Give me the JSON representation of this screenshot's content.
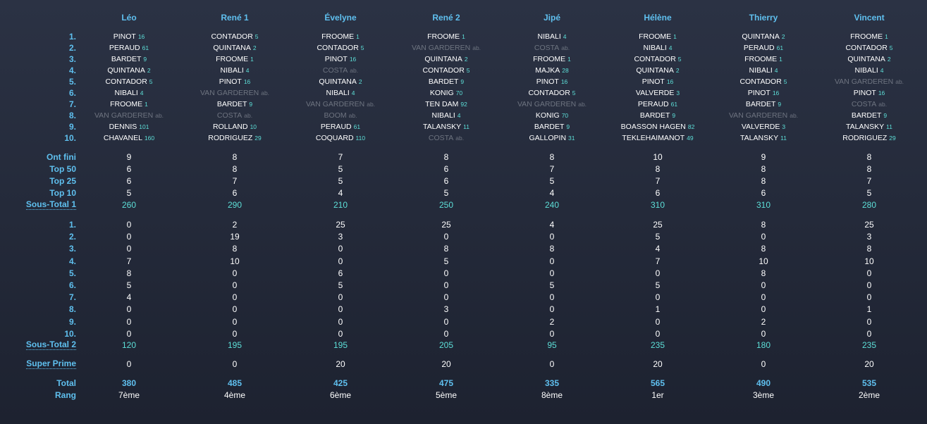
{
  "players": [
    {
      "name": "Léo",
      "picks": [
        {
          "rider": "PINOT",
          "num": "16"
        },
        {
          "rider": "PERAUD",
          "num": "61"
        },
        {
          "rider": "BARDET",
          "num": "9"
        },
        {
          "rider": "QUINTANA",
          "num": "2"
        },
        {
          "rider": "CONTADOR",
          "num": "5"
        },
        {
          "rider": "NIBALI",
          "num": "4"
        },
        {
          "rider": "FROOME",
          "num": "1"
        },
        {
          "rider": "VAN GARDEREN",
          "num": "ab.",
          "abandon": true
        },
        {
          "rider": "DENNIS",
          "num": "101"
        },
        {
          "rider": "CHAVANEL",
          "num": "160"
        }
      ],
      "ont_fini": "9",
      "top50": "6",
      "top25": "6",
      "top10": "5",
      "sous_total_1": "260",
      "points": [
        "0",
        "0",
        "0",
        "7",
        "8",
        "5",
        "4",
        "0",
        "0",
        "0"
      ],
      "sous_total_2": "120",
      "super_prime": "0",
      "total": "380",
      "rang": "7ème"
    },
    {
      "name": "René 1",
      "picks": [
        {
          "rider": "CONTADOR",
          "num": "5"
        },
        {
          "rider": "QUINTANA",
          "num": "2"
        },
        {
          "rider": "FROOME",
          "num": "1"
        },
        {
          "rider": "NIBALI",
          "num": "4"
        },
        {
          "rider": "PINOT",
          "num": "16"
        },
        {
          "rider": "VAN GARDEREN",
          "num": "ab.",
          "abandon": true
        },
        {
          "rider": "BARDET",
          "num": "9"
        },
        {
          "rider": "COSTA",
          "num": "ab.",
          "abandon": true
        },
        {
          "rider": "ROLLAND",
          "num": "10"
        },
        {
          "rider": "RODRIGUEZ",
          "num": "29"
        }
      ],
      "ont_fini": "8",
      "top50": "8",
      "top25": "7",
      "top10": "6",
      "sous_total_1": "290",
      "points": [
        "2",
        "19",
        "8",
        "10",
        "0",
        "0",
        "0",
        "0",
        "0",
        "0"
      ],
      "sous_total_2": "195",
      "super_prime": "0",
      "total": "485",
      "rang": "4ème"
    },
    {
      "name": "Évelyne",
      "picks": [
        {
          "rider": "FROOME",
          "num": "1"
        },
        {
          "rider": "CONTADOR",
          "num": "5"
        },
        {
          "rider": "PINOT",
          "num": "16"
        },
        {
          "rider": "COSTA",
          "num": "ab.",
          "abandon": true
        },
        {
          "rider": "QUINTANA",
          "num": "2"
        },
        {
          "rider": "NIBALI",
          "num": "4"
        },
        {
          "rider": "VAN GARDEREN",
          "num": "ab.",
          "abandon": true
        },
        {
          "rider": "BOOM",
          "num": "ab.",
          "abandon": true
        },
        {
          "rider": "PERAUD",
          "num": "61"
        },
        {
          "rider": "COQUARD",
          "num": "110"
        }
      ],
      "ont_fini": "7",
      "top50": "5",
      "top25": "5",
      "top10": "4",
      "sous_total_1": "210",
      "points": [
        "25",
        "3",
        "0",
        "0",
        "6",
        "5",
        "0",
        "0",
        "0",
        "0"
      ],
      "sous_total_2": "195",
      "super_prime": "20",
      "total": "425",
      "rang": "6ème"
    },
    {
      "name": "René 2",
      "picks": [
        {
          "rider": "FROOME",
          "num": "1"
        },
        {
          "rider": "VAN GARDEREN",
          "num": "ab.",
          "abandon": true
        },
        {
          "rider": "QUINTANA",
          "num": "2"
        },
        {
          "rider": "CONTADOR",
          "num": "5"
        },
        {
          "rider": "BARDET",
          "num": "9"
        },
        {
          "rider": "KONIG",
          "num": "70"
        },
        {
          "rider": "TEN DAM",
          "num": "92"
        },
        {
          "rider": "NIBALI",
          "num": "4"
        },
        {
          "rider": "TALANSKY",
          "num": "11"
        },
        {
          "rider": "COSTA",
          "num": "ab.",
          "abandon": true
        }
      ],
      "ont_fini": "8",
      "top50": "6",
      "top25": "6",
      "top10": "5",
      "sous_total_1": "250",
      "points": [
        "25",
        "0",
        "8",
        "5",
        "0",
        "0",
        "0",
        "3",
        "0",
        "0"
      ],
      "sous_total_2": "205",
      "super_prime": "20",
      "total": "475",
      "rang": "5ème"
    },
    {
      "name": "Jipé",
      "picks": [
        {
          "rider": "NIBALI",
          "num": "4"
        },
        {
          "rider": "COSTA",
          "num": "ab.",
          "abandon": true
        },
        {
          "rider": "FROOME",
          "num": "1"
        },
        {
          "rider": "MAJKA",
          "num": "28"
        },
        {
          "rider": "PINOT",
          "num": "16"
        },
        {
          "rider": "CONTADOR",
          "num": "5"
        },
        {
          "rider": "VAN GARDEREN",
          "num": "ab.",
          "abandon": true
        },
        {
          "rider": "KONIG",
          "num": "70"
        },
        {
          "rider": "BARDET",
          "num": "9"
        },
        {
          "rider": "GALLOPIN",
          "num": "31"
        }
      ],
      "ont_fini": "8",
      "top50": "7",
      "top25": "5",
      "top10": "4",
      "sous_total_1": "240",
      "points": [
        "4",
        "0",
        "8",
        "0",
        "0",
        "5",
        "0",
        "0",
        "2",
        "0"
      ],
      "sous_total_2": "95",
      "super_prime": "0",
      "total": "335",
      "rang": "8ème"
    },
    {
      "name": "Hélène",
      "picks": [
        {
          "rider": "FROOME",
          "num": "1"
        },
        {
          "rider": "NIBALI",
          "num": "4"
        },
        {
          "rider": "CONTADOR",
          "num": "5"
        },
        {
          "rider": "QUINTANA",
          "num": "2"
        },
        {
          "rider": "PINOT",
          "num": "16"
        },
        {
          "rider": "VALVERDE",
          "num": "3"
        },
        {
          "rider": "PERAUD",
          "num": "61"
        },
        {
          "rider": "BARDET",
          "num": "9"
        },
        {
          "rider": "BOASSON HAGEN",
          "num": "82"
        },
        {
          "rider": "TEKLEHAIMANOT",
          "num": "49"
        }
      ],
      "ont_fini": "10",
      "top50": "8",
      "top25": "7",
      "top10": "6",
      "sous_total_1": "310",
      "points": [
        "25",
        "5",
        "4",
        "7",
        "0",
        "5",
        "0",
        "1",
        "0",
        "0"
      ],
      "sous_total_2": "235",
      "super_prime": "20",
      "total": "565",
      "rang": "1er"
    },
    {
      "name": "Thierry",
      "picks": [
        {
          "rider": "QUINTANA",
          "num": "2"
        },
        {
          "rider": "PERAUD",
          "num": "61"
        },
        {
          "rider": "FROOME",
          "num": "1"
        },
        {
          "rider": "NIBALI",
          "num": "4"
        },
        {
          "rider": "CONTADOR",
          "num": "5"
        },
        {
          "rider": "PINOT",
          "num": "16"
        },
        {
          "rider": "BARDET",
          "num": "9"
        },
        {
          "rider": "VAN GARDEREN",
          "num": "ab.",
          "abandon": true
        },
        {
          "rider": "VALVERDE",
          "num": "3"
        },
        {
          "rider": "TALANSKY",
          "num": "11"
        }
      ],
      "ont_fini": "9",
      "top50": "8",
      "top25": "8",
      "top10": "6",
      "sous_total_1": "310",
      "points": [
        "8",
        "0",
        "8",
        "10",
        "8",
        "0",
        "0",
        "0",
        "2",
        "0"
      ],
      "sous_total_2": "180",
      "super_prime": "0",
      "total": "490",
      "rang": "3ème"
    },
    {
      "name": "Vincent",
      "picks": [
        {
          "rider": "FROOME",
          "num": "1"
        },
        {
          "rider": "CONTADOR",
          "num": "5"
        },
        {
          "rider": "QUINTANA",
          "num": "2"
        },
        {
          "rider": "NIBALI",
          "num": "4"
        },
        {
          "rider": "VAN GARDEREN",
          "num": "ab.",
          "abandon": true
        },
        {
          "rider": "PINOT",
          "num": "16"
        },
        {
          "rider": "COSTA",
          "num": "ab.",
          "abandon": true
        },
        {
          "rider": "BARDET",
          "num": "9"
        },
        {
          "rider": "TALANSKY",
          "num": "11"
        },
        {
          "rider": "RODRIGUEZ",
          "num": "29"
        }
      ],
      "ont_fini": "8",
      "top50": "8",
      "top25": "7",
      "top10": "5",
      "sous_total_1": "280",
      "points": [
        "25",
        "3",
        "8",
        "10",
        "0",
        "0",
        "0",
        "1",
        "0",
        "0"
      ],
      "sous_total_2": "235",
      "super_prime": "20",
      "total": "535",
      "rang": "2ème"
    }
  ],
  "labels": {
    "ranks": [
      "1.",
      "2.",
      "3.",
      "4.",
      "5.",
      "6.",
      "7.",
      "8.",
      "9.",
      "10."
    ],
    "ont_fini": "Ont fini",
    "top50": "Top 50",
    "top25": "Top 25",
    "top10": "Top 10",
    "sous_total_1": "Sous-Total 1",
    "sous_total_2": "Sous-Total 2",
    "super_prime": "Super Prime",
    "total": "Total",
    "rang": "Rang"
  },
  "colors": {
    "background_top": "#2b3244",
    "background_bottom": "#1d2230",
    "header": "#5fc0ef",
    "rider_number": "#5ddfd8",
    "abandoned": "#6e7480",
    "text": "#ffffff"
  }
}
